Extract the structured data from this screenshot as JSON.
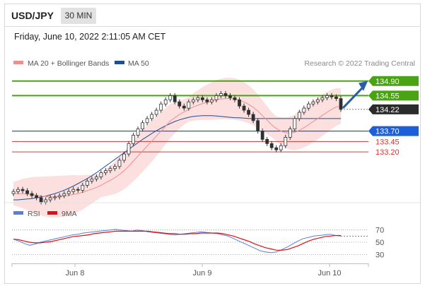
{
  "header": {
    "symbol": "USD/JPY",
    "timeframe": "30 MIN",
    "datetime": "Friday, June 10, 2022 2:11:05 AM CET"
  },
  "legend": {
    "ma20": {
      "label": "MA 20 + Bollinger Bands",
      "color": "#f08f8f"
    },
    "ma50": {
      "label": "MA 50",
      "color": "#1f4e96"
    }
  },
  "credit": "Research © 2022 Trading Central",
  "levels": [
    {
      "value": 134.9,
      "label": "134.90",
      "kind": "resistance",
      "color": "#4aa313"
    },
    {
      "value": 134.55,
      "label": "134.55",
      "kind": "resistance",
      "color": "#4aa313"
    },
    {
      "value": 134.22,
      "label": "134.22",
      "kind": "last",
      "color": "#2b2b2b"
    },
    {
      "value": 133.7,
      "label": "133.70",
      "kind": "pivot",
      "color": "#1d5fd6"
    },
    {
      "value": 133.45,
      "label": "133.45",
      "kind": "support",
      "color": "#e03030"
    },
    {
      "value": 133.2,
      "label": "133.20",
      "kind": "support",
      "color": "#e03030"
    }
  ],
  "rsi_legend": {
    "rsi": {
      "label": "RSI",
      "color": "#5a7fd6"
    },
    "ma9": {
      "label": "9MA",
      "color": "#dd1111"
    }
  },
  "rsi_ticks": [
    "70",
    "50",
    "30"
  ],
  "x_labels": [
    "Jun 8",
    "Jun 9",
    "Jun 10"
  ],
  "chart_data": {
    "type": "line",
    "title": "",
    "y_range": [
      132.05,
      135.15
    ],
    "series": [
      {
        "name": "USD/JPY",
        "values": [
          132.25,
          132.3,
          132.27,
          132.2,
          132.15,
          132.1,
          132.0,
          132.05,
          132.1,
          132.12,
          132.15,
          132.2,
          132.25,
          132.3,
          132.28,
          132.4,
          132.5,
          132.55,
          132.6,
          132.7,
          132.75,
          132.8,
          132.85,
          133.0,
          133.15,
          133.4,
          133.6,
          133.75,
          133.9,
          134.0,
          134.1,
          134.2,
          134.35,
          134.45,
          134.55,
          134.4,
          134.3,
          134.25,
          134.4,
          134.45,
          134.5,
          134.45,
          134.4,
          134.45,
          134.55,
          134.6,
          134.55,
          134.5,
          134.45,
          134.3,
          134.2,
          134.1,
          133.95,
          133.7,
          133.5,
          133.4,
          133.3,
          133.25,
          133.35,
          133.55,
          133.75,
          134.0,
          134.15,
          134.25,
          134.35,
          134.4,
          134.45,
          134.5,
          134.55,
          134.52,
          134.48,
          134.22
        ]
      },
      {
        "name": "MA 20",
        "values": [
          132.2,
          132.2,
          132.2,
          132.19,
          132.18,
          132.16,
          132.14,
          132.13,
          132.12,
          132.12,
          132.13,
          132.14,
          132.16,
          132.18,
          132.2,
          132.23,
          132.27,
          132.31,
          132.35,
          132.4,
          132.46,
          132.52,
          132.58,
          132.66,
          132.75,
          132.86,
          132.98,
          133.1,
          133.22,
          133.34,
          133.46,
          133.58,
          133.7,
          133.82,
          133.94,
          134.02,
          134.1,
          134.16,
          134.22,
          134.28,
          134.32,
          134.36,
          134.39,
          134.42,
          134.45,
          134.47,
          134.48,
          134.48,
          134.47,
          134.44,
          134.4,
          134.34,
          134.27,
          134.18,
          134.07,
          133.96,
          133.85,
          133.76,
          133.7,
          133.66,
          133.65,
          133.67,
          133.72,
          133.78,
          133.85,
          133.93,
          134.0,
          134.08,
          134.15,
          134.22,
          134.28,
          134.3
        ]
      },
      {
        "name": "MA 50",
        "values": [
          132.05,
          132.05,
          132.06,
          132.07,
          132.08,
          132.1,
          132.12,
          132.14,
          132.17,
          132.2,
          132.24,
          132.28,
          132.33,
          132.38,
          132.44,
          132.5,
          132.56,
          132.63,
          132.7,
          132.78,
          132.86,
          132.94,
          133.02,
          133.1,
          133.18,
          133.26,
          133.34,
          133.42,
          133.5,
          133.57,
          133.64,
          133.71,
          133.77,
          133.83,
          133.88,
          133.93,
          133.97,
          134.0,
          134.03,
          134.05,
          134.06,
          134.07,
          134.07,
          134.07,
          134.06,
          134.05,
          134.04,
          134.03,
          134.02,
          134.02,
          134.01,
          134.0,
          134.0,
          134.0,
          134.0,
          134.0,
          134.0,
          134.0,
          134.0,
          134.0,
          134.0,
          134.0,
          134.0,
          134.0,
          134.0,
          134.0,
          134.0,
          134.0,
          134.0,
          134.0,
          134.0,
          134.0
        ]
      },
      {
        "name": "RSI",
        "values": [
          55,
          52,
          48,
          45,
          47,
          50,
          52,
          54,
          56,
          58,
          60,
          62,
          63,
          65,
          66,
          67,
          68,
          69,
          70,
          71,
          70,
          69,
          68,
          70,
          69,
          67,
          66,
          65,
          64,
          63,
          62,
          63,
          64,
          65,
          66,
          67,
          66,
          65,
          64,
          62,
          60,
          56,
          52,
          48,
          44,
          40,
          36,
          34,
          33,
          34,
          38,
          42,
          47,
          52,
          56,
          58,
          60,
          61,
          62,
          63,
          61,
          60
        ]
      },
      {
        "name": "9MA",
        "values": [
          55,
          54,
          52,
          50,
          49,
          49,
          50,
          51,
          53,
          55,
          57,
          59,
          60,
          61,
          62,
          64,
          65,
          66,
          67,
          68,
          68,
          68,
          68,
          68,
          68,
          68,
          67,
          66,
          65,
          64,
          64,
          63,
          63,
          64,
          64,
          65,
          65,
          65,
          65,
          64,
          62,
          60,
          57,
          54,
          51,
          47,
          44,
          41,
          39,
          37,
          37,
          38,
          41,
          44,
          48,
          52,
          55,
          57,
          59,
          60,
          61,
          61
        ]
      }
    ]
  }
}
